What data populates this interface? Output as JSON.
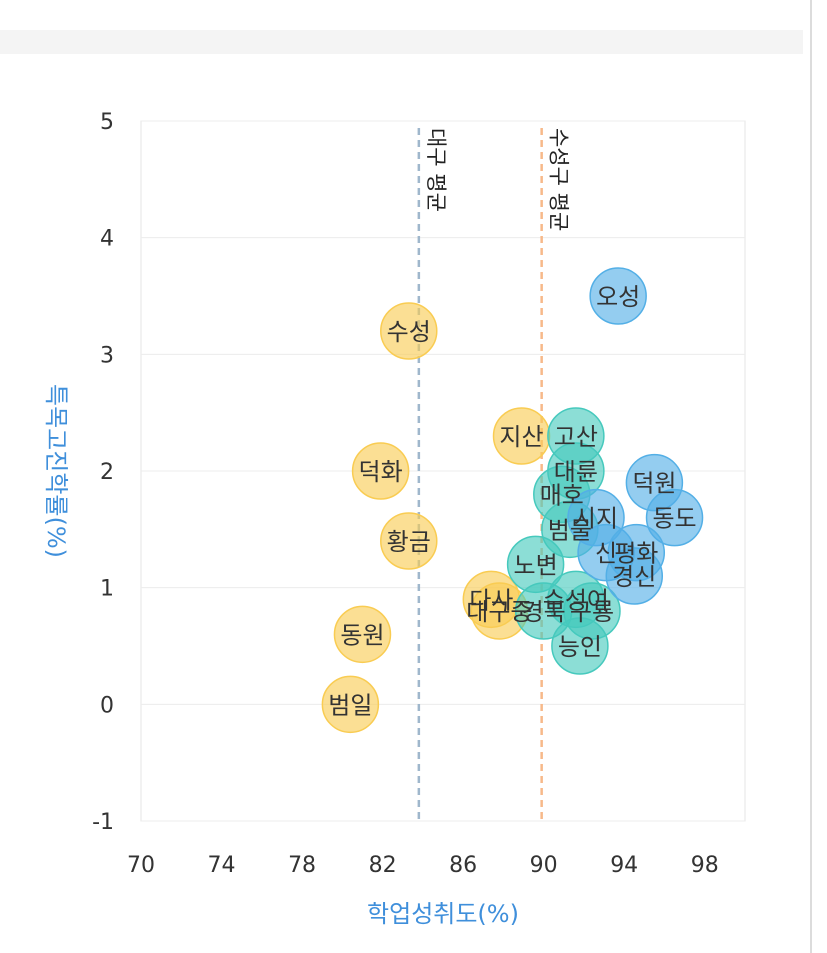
{
  "chart_data": {
    "type": "scatter",
    "xlabel": "학업성취도(%)",
    "ylabel": "특목고진학률(%)",
    "xlim": [
      70,
      100
    ],
    "ylim": [
      -1,
      5
    ],
    "xticks": [
      70,
      74,
      78,
      82,
      86,
      90,
      94,
      98
    ],
    "yticks": [
      -1,
      0,
      1,
      2,
      3,
      4,
      5
    ],
    "grid": true,
    "reference_lines": [
      {
        "label": "대구 평균",
        "x": 83.8,
        "color": "#9fb7cc"
      },
      {
        "label": "수성구 평균",
        "x": 89.9,
        "color": "#f7b98a"
      }
    ],
    "groups": [
      {
        "color": "#f9cc52"
      },
      {
        "color": "#46c9bd"
      },
      {
        "color": "#53afe6"
      }
    ],
    "points": [
      {
        "label": "수성",
        "x": 83.3,
        "y": 3.2,
        "group": 0
      },
      {
        "label": "덕화",
        "x": 81.9,
        "y": 2.0,
        "group": 0
      },
      {
        "label": "황금",
        "x": 83.3,
        "y": 1.4,
        "group": 0
      },
      {
        "label": "동원",
        "x": 81.0,
        "y": 0.6,
        "group": 0
      },
      {
        "label": "범일",
        "x": 80.4,
        "y": 0.0,
        "group": 0
      },
      {
        "label": "지산",
        "x": 88.9,
        "y": 2.3,
        "group": 0
      },
      {
        "label": "대구중",
        "x": 87.8,
        "y": 0.8,
        "group": 0
      },
      {
        "label": "다사",
        "x": 87.4,
        "y": 0.9,
        "group": 0
      },
      {
        "label": "고산",
        "x": 91.6,
        "y": 2.3,
        "group": 1
      },
      {
        "label": "대륜",
        "x": 91.6,
        "y": 2.0,
        "group": 1
      },
      {
        "label": "매호",
        "x": 90.9,
        "y": 1.8,
        "group": 1
      },
      {
        "label": "범물",
        "x": 91.3,
        "y": 1.5,
        "group": 1
      },
      {
        "label": "노변",
        "x": 89.6,
        "y": 1.2,
        "group": 1
      },
      {
        "label": "경북",
        "x": 90.0,
        "y": 0.8,
        "group": 1
      },
      {
        "label": "수성여",
        "x": 91.6,
        "y": 0.9,
        "group": 1
      },
      {
        "label": "구룡",
        "x": 92.4,
        "y": 0.8,
        "group": 1
      },
      {
        "label": "능인",
        "x": 91.8,
        "y": 0.5,
        "group": 1
      },
      {
        "label": "시지",
        "x": 92.6,
        "y": 1.6,
        "group": 2
      },
      {
        "label": "오성",
        "x": 93.7,
        "y": 3.5,
        "group": 2
      },
      {
        "label": "덕원",
        "x": 95.5,
        "y": 1.9,
        "group": 2
      },
      {
        "label": "동도",
        "x": 96.5,
        "y": 1.6,
        "group": 2
      },
      {
        "label": "신",
        "x": 93.1,
        "y": 1.3,
        "group": 2
      },
      {
        "label": "평화",
        "x": 94.6,
        "y": 1.3,
        "group": 2
      },
      {
        "label": "경신",
        "x": 94.5,
        "y": 1.1,
        "group": 2
      }
    ]
  }
}
